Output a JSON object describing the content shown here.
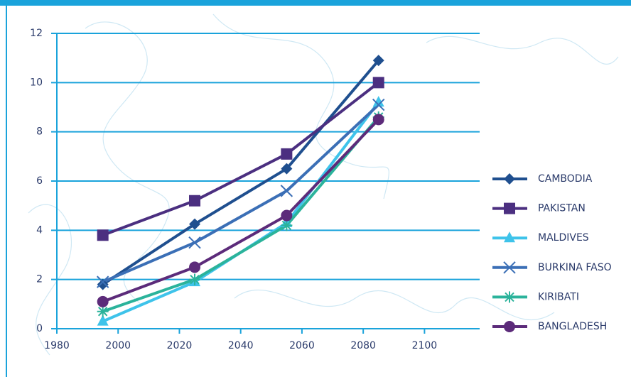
{
  "chart_data": {
    "type": "line",
    "x": [
      1995,
      2025,
      2055,
      2085
    ],
    "xlim": [
      1980,
      2118
    ],
    "xticks": [
      1980,
      2000,
      2020,
      2040,
      2060,
      2080,
      2100
    ],
    "ylim": [
      0,
      12
    ],
    "yticks": [
      0,
      2,
      4,
      6,
      8,
      10,
      12
    ],
    "grid": true,
    "legend": "right",
    "series": [
      {
        "name": "CAMBODIA",
        "color": "#1f4f8f",
        "marker": "diamond",
        "values": [
          1.8,
          4.25,
          6.5,
          10.9
        ]
      },
      {
        "name": "PAKISTAN",
        "color": "#4b2f80",
        "marker": "square",
        "values": [
          3.8,
          5.2,
          7.1,
          10
        ]
      },
      {
        "name": "MALDIVES",
        "color": "#3ec3ea",
        "marker": "triangle",
        "values": [
          0.3,
          1.9,
          4.3,
          9.2
        ]
      },
      {
        "name": "BURKINA FASO",
        "color": "#3b6fb6",
        "marker": "x",
        "values": [
          1.9,
          3.5,
          5.6,
          9.1
        ]
      },
      {
        "name": "KIRIBATI",
        "color": "#2bb39b",
        "marker": "asterisk",
        "values": [
          0.7,
          2.0,
          4.2,
          8.6
        ]
      },
      {
        "name": "BANGLADESH",
        "color": "#5c2b7a",
        "marker": "circle",
        "values": [
          1.1,
          2.5,
          4.6,
          8.5
        ]
      }
    ]
  }
}
